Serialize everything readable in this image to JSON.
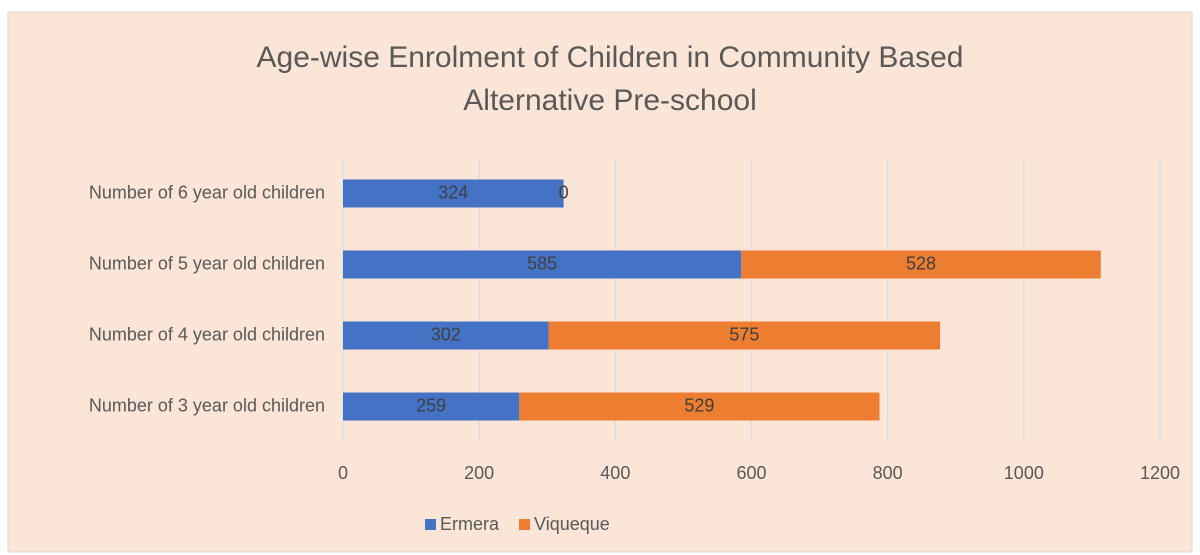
{
  "chart_data": {
    "type": "stacked_barh",
    "title": "Age-wise Enrolment of Children in Community Based Alternative Pre-school",
    "categories": [
      "Number of 3 year old children",
      "Number of 4 year old children",
      "Number of 5 year old children",
      "Number of 6 year old children"
    ],
    "series": [
      {
        "name": "Ermera",
        "color": "#4472c4",
        "values": [
          259,
          302,
          585,
          324
        ]
      },
      {
        "name": "Viqueque",
        "color": "#ed7d31",
        "values": [
          529,
          575,
          528,
          0
        ]
      }
    ],
    "xlim": [
      0,
      1200
    ],
    "xticks": [
      0,
      200,
      400,
      600,
      800,
      1000,
      1200
    ],
    "grid": true,
    "legend": "bottom"
  }
}
